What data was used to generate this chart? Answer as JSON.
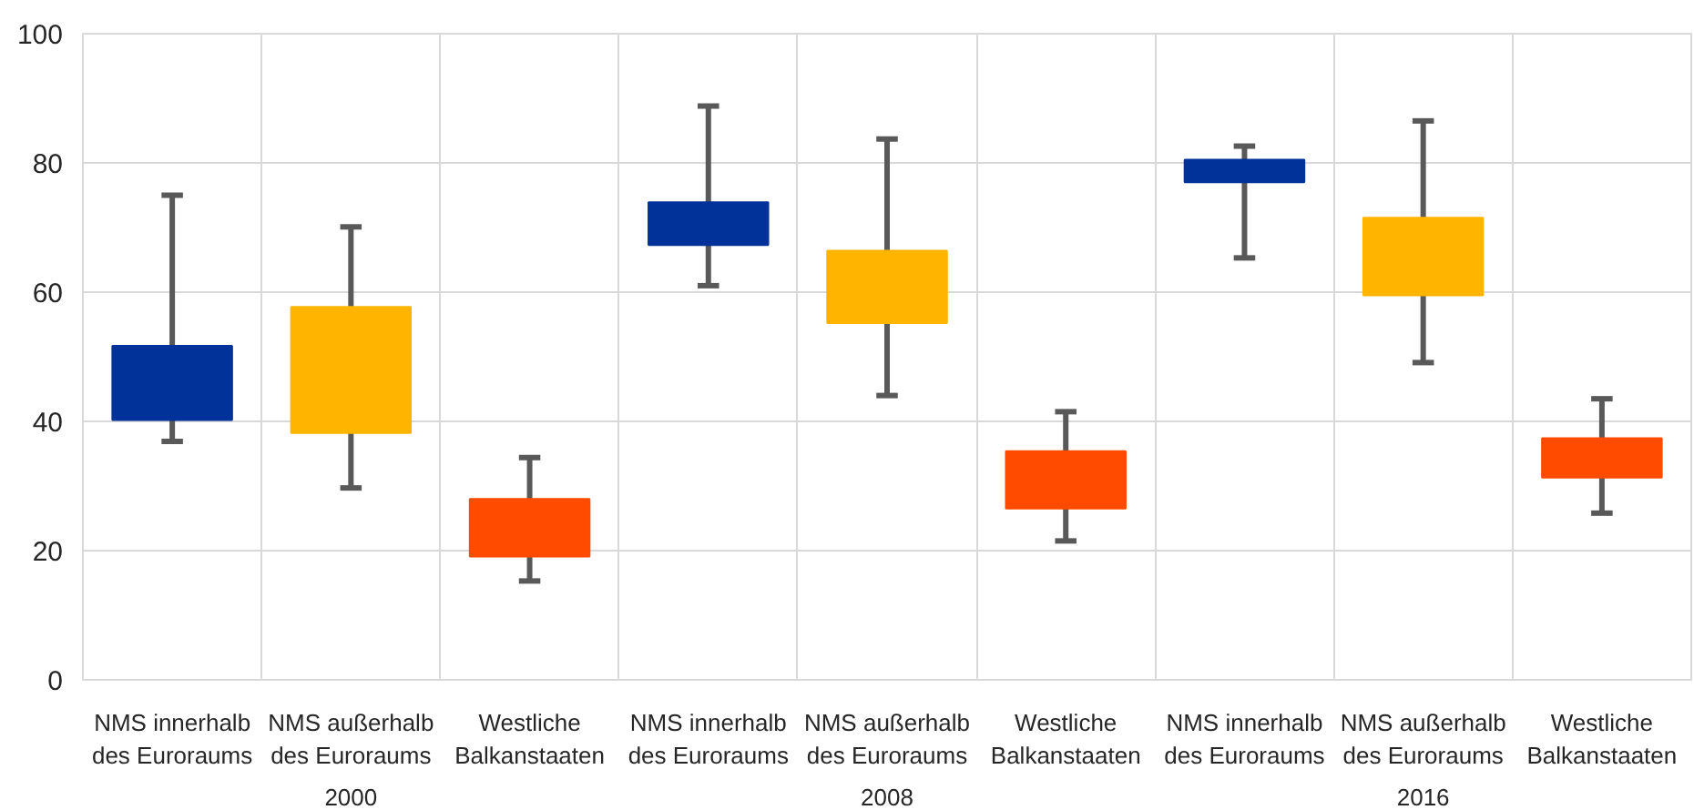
{
  "chart_data": {
    "type": "bar",
    "categories": [
      "NMS innerhalb\ndes Euroraums",
      "NMS außerhalb\ndes Euroraums",
      "Westliche\nBalkanstaaten",
      "NMS innerhalb\ndes Euroraums",
      "NMS außerhalb\ndes Euroraums",
      "Westliche\nBalkanstaaten",
      "NMS innerhalb\ndes Euroraums",
      "NMS außerhalb\ndes Euroraums",
      "Westliche\nBalkanstaaten"
    ],
    "base": [
      40.2,
      38.2,
      19.1,
      67.3,
      55.2,
      26.5,
      77.0,
      59.5,
      31.3
    ],
    "values": [
      11.5,
      19.5,
      8.9,
      6.6,
      11.2,
      8.9,
      3.5,
      12.0,
      6.1
    ],
    "errors": [
      [
        36.9,
        75.0
      ],
      [
        29.7,
        70.1
      ],
      [
        15.3,
        34.4
      ],
      [
        61.0,
        88.8
      ],
      [
        44.0,
        83.7
      ],
      [
        21.5,
        41.5
      ],
      [
        65.3,
        82.6
      ],
      [
        49.1,
        86.5
      ],
      [
        25.8,
        43.5
      ]
    ],
    "colors": [
      "#003299",
      "#ffb400",
      "#ff4b00",
      "#003299",
      "#ffb400",
      "#ff4b00",
      "#003299",
      "#ffb400",
      "#ff4b00"
    ],
    "annotations": [
      "2000",
      "2008",
      "2016"
    ],
    "ylim": [
      0,
      100
    ],
    "yticks": [
      0,
      20,
      40,
      60,
      80,
      100
    ],
    "grid": true
  }
}
